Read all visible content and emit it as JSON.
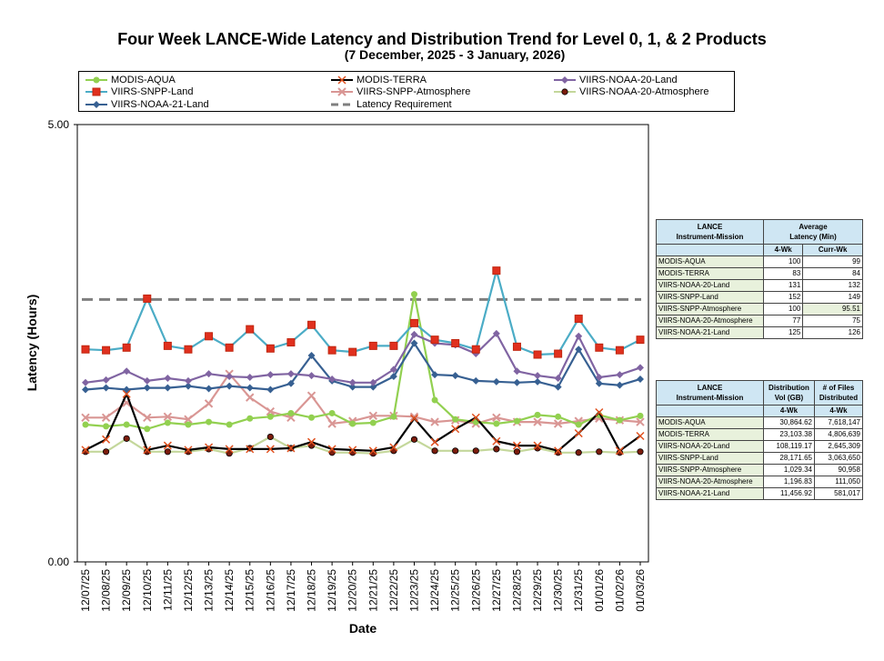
{
  "chart_data": {
    "type": "line",
    "title": "Four Week LANCE-Wide Latency and Distribution Trend for Level 0, 1, & 2 Products",
    "subtitle": "(7  December,  2025  -  3  January, 2026)",
    "xlabel": "Date",
    "ylabel": "Latency (Hours)",
    "ylim": [
      0,
      5
    ],
    "yticks": [
      "0.00",
      "5.00"
    ],
    "legend_position": "top",
    "categories": [
      "12/07/25",
      "12/08/25",
      "12/09/25",
      "12/10/25",
      "12/11/25",
      "12/12/25",
      "12/13/25",
      "12/14/25",
      "12/15/25",
      "12/16/25",
      "12/17/25",
      "12/18/25",
      "12/19/25",
      "12/20/25",
      "12/21/25",
      "12/22/25",
      "12/23/25",
      "12/24/25",
      "12/25/25",
      "12/26/25",
      "12/27/25",
      "12/28/25",
      "12/29/25",
      "12/30/25",
      "12/31/25",
      "01/01/26",
      "01/02/26",
      "01/03/26"
    ],
    "series": [
      {
        "name": "MODIS-AQUA",
        "color": "#92d050",
        "marker": "circle",
        "values": [
          1.57,
          1.55,
          1.57,
          1.52,
          1.59,
          1.57,
          1.6,
          1.57,
          1.64,
          1.66,
          1.7,
          1.65,
          1.7,
          1.58,
          1.59,
          1.66,
          3.06,
          1.85,
          1.63,
          1.6,
          1.58,
          1.61,
          1.68,
          1.66,
          1.57,
          1.68,
          1.62,
          1.67
        ]
      },
      {
        "name": "MODIS-TERRA",
        "color": "#000000",
        "marker": "x-star",
        "values": [
          1.28,
          1.4,
          1.92,
          1.28,
          1.33,
          1.28,
          1.31,
          1.29,
          1.29,
          1.29,
          1.3,
          1.37,
          1.29,
          1.28,
          1.27,
          1.31,
          1.64,
          1.37,
          1.52,
          1.65,
          1.38,
          1.33,
          1.33,
          1.27,
          1.47,
          1.71,
          1.27,
          1.44
        ]
      },
      {
        "name": "VIIRS-NOAA-20-Land",
        "color": "#8064a2",
        "marker": "diamond",
        "values": [
          2.05,
          2.08,
          2.18,
          2.07,
          2.1,
          2.07,
          2.15,
          2.12,
          2.11,
          2.14,
          2.15,
          2.13,
          2.09,
          2.05,
          2.05,
          2.2,
          2.6,
          2.5,
          2.48,
          2.38,
          2.61,
          2.18,
          2.13,
          2.1,
          2.58,
          2.11,
          2.14,
          2.22
        ]
      },
      {
        "name": "VIIRS-SNPP-Land",
        "color": "#4bacc6",
        "marker": "square",
        "values": [
          2.43,
          2.42,
          2.45,
          3.01,
          2.47,
          2.43,
          2.58,
          2.45,
          2.66,
          2.44,
          2.51,
          2.71,
          2.42,
          2.4,
          2.47,
          2.47,
          2.73,
          2.54,
          2.5,
          2.43,
          3.33,
          2.46,
          2.37,
          2.38,
          2.78,
          2.45,
          2.42,
          2.54
        ]
      },
      {
        "name": "VIIRS-SNPP-Atmosphere",
        "color": "#d99694",
        "marker": "x",
        "values": [
          1.65,
          1.65,
          1.82,
          1.65,
          1.66,
          1.63,
          1.81,
          2.15,
          1.88,
          1.72,
          1.65,
          1.9,
          1.58,
          1.61,
          1.67,
          1.67,
          1.66,
          1.6,
          1.62,
          1.58,
          1.65,
          1.6,
          1.6,
          1.58,
          1.61,
          1.64,
          1.62,
          1.6
        ]
      },
      {
        "name": "VIIRS-NOAA-20-Atmosphere",
        "color": "#c4d79b",
        "marker": "dot",
        "values": [
          1.26,
          1.26,
          1.41,
          1.26,
          1.26,
          1.26,
          1.29,
          1.24,
          1.3,
          1.43,
          1.3,
          1.33,
          1.25,
          1.25,
          1.24,
          1.27,
          1.4,
          1.27,
          1.27,
          1.27,
          1.29,
          1.26,
          1.3,
          1.25,
          1.25,
          1.26,
          1.25,
          1.26
        ]
      },
      {
        "name": "VIIRS-NOAA-21-Land",
        "color": "#376092",
        "marker": "diamond",
        "values": [
          1.97,
          1.99,
          1.97,
          1.99,
          1.99,
          2.01,
          1.98,
          2.01,
          1.99,
          1.97,
          2.04,
          2.36,
          2.07,
          2.0,
          2.0,
          2.12,
          2.5,
          2.14,
          2.13,
          2.07,
          2.06,
          2.05,
          2.06,
          2.0,
          2.43,
          2.04,
          2.02,
          2.09
        ]
      },
      {
        "name": "Latency Requirement",
        "color": "#7f7f7f",
        "marker": "none",
        "dashed": true,
        "values": [
          3.0,
          3.0,
          3.0,
          3.0,
          3.0,
          3.0,
          3.0,
          3.0,
          3.0,
          3.0,
          3.0,
          3.0,
          3.0,
          3.0,
          3.0,
          3.0,
          3.0,
          3.0,
          3.0,
          3.0,
          3.0,
          3.0,
          3.0,
          3.0,
          3.0,
          3.0,
          3.0,
          3.0
        ]
      }
    ]
  },
  "latency_table": {
    "header_col1": "LANCE\nInstrument-Mission",
    "header_col2": "Average\nLatency (Min)",
    "sub_4wk": "4-Wk",
    "sub_curr": "Curr-Wk",
    "rows": [
      {
        "name": "MODIS-AQUA",
        "wk4": "100",
        "curr": "99"
      },
      {
        "name": "MODIS-TERRA",
        "wk4": "83",
        "curr": "84"
      },
      {
        "name": "VIIRS-NOAA-20-Land",
        "wk4": "131",
        "curr": "132"
      },
      {
        "name": "VIIRS-SNPP-Land",
        "wk4": "152",
        "curr": "149"
      },
      {
        "name": "VIIRS-SNPP-Atmosphere",
        "wk4": "100",
        "curr": "95.51"
      },
      {
        "name": "VIIRS-NOAA-20-Atmosphere",
        "wk4": "77",
        "curr": "75"
      },
      {
        "name": "VIIRS-NOAA-21-Land",
        "wk4": "125",
        "curr": "126"
      }
    ]
  },
  "distribution_table": {
    "header_col1": "LANCE\nInstrument-Mission",
    "header_col2": "Distribution\nVol (GB)",
    "header_col3": "# of Files\nDistributed",
    "sub_vol": "4-Wk",
    "sub_files": "4-Wk",
    "rows": [
      {
        "name": "MODIS-AQUA",
        "vol": "30,864.62",
        "files": "7,618,147"
      },
      {
        "name": "MODIS-TERRA",
        "vol": "23,103.38",
        "files": "4,806,639"
      },
      {
        "name": "VIIRS-NOAA-20-Land",
        "vol": "108,119.17",
        "files": "2,645,309"
      },
      {
        "name": "VIIRS-SNPP-Land",
        "vol": "28,171.65",
        "files": "3,063,650"
      },
      {
        "name": "VIIRS-SNPP-Atmosphere",
        "vol": "1,029.34",
        "files": "90,958"
      },
      {
        "name": "VIIRS-NOAA-20-Atmosphere",
        "vol": "1,196.83",
        "files": "111,050"
      },
      {
        "name": "VIIRS-NOAA-21-Land",
        "vol": "11,456.92",
        "files": "581,017"
      }
    ]
  }
}
